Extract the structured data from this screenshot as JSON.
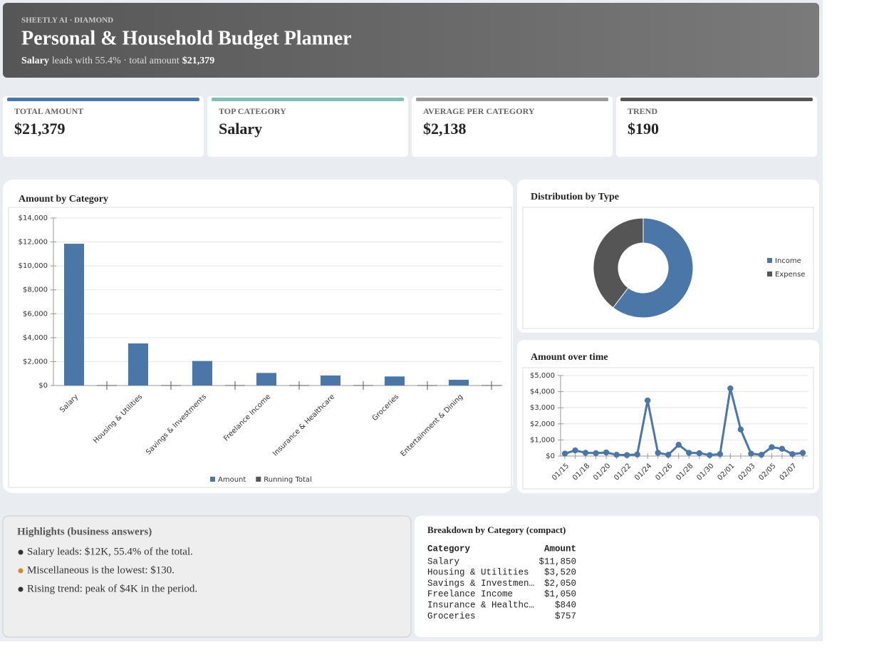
{
  "header": {
    "eyebrow": "SHEETLY AI · DIAMOND",
    "title": "Personal & Household Budget Planner",
    "subtitle": {
      "lead": "Salary",
      "text": "leads with 55.4% · total amount",
      "total": "$21,379"
    }
  },
  "kpis": [
    {
      "label": "TOTAL AMOUNT",
      "value": "$21,379",
      "color": "#4a76a8"
    },
    {
      "label": "TOP CATEGORY",
      "value": "Salary",
      "color": "#7fbfb5"
    },
    {
      "label": "AVERAGE PER CATEGORY",
      "value": "$2,138",
      "color": "#9a9a9a"
    },
    {
      "label": "TREND",
      "value": "$190",
      "color": "#555555"
    }
  ],
  "chart_data": [
    {
      "type": "bar",
      "title": "Amount by Category",
      "categories": [
        "Salary",
        "Housing & Utilities",
        "Savings & Investments",
        "Freelance Income",
        "Insurance & Healthcare",
        "Groceries",
        "Entertainment & Dining"
      ],
      "series": [
        {
          "name": "Amount",
          "color": "#4a76a8",
          "values": [
            11850,
            3520,
            2050,
            1050,
            840,
            757,
            480
          ]
        },
        {
          "name": "Running Total",
          "color": "#555555",
          "values": [
            0,
            0,
            0,
            0,
            0,
            0,
            0
          ]
        }
      ],
      "ylim": [
        0,
        14000
      ],
      "yticks": [
        {
          "value": 0,
          "label": "$0"
        },
        {
          "value": 2000,
          "label": "$2,000"
        },
        {
          "value": 4000,
          "label": "$4,000"
        },
        {
          "value": 6000,
          "label": "$6,000"
        },
        {
          "value": 8000,
          "label": "$8,000"
        },
        {
          "value": 10000,
          "label": "$10,000"
        },
        {
          "value": 12000,
          "label": "$12,000"
        },
        {
          "value": 14000,
          "label": "$14,000"
        }
      ],
      "grid": true,
      "legend": "bottom"
    },
    {
      "type": "pie",
      "title": "Distribution by Type",
      "categories": [
        "Income",
        "Expense"
      ],
      "values": [
        12900,
        8479
      ],
      "colors": [
        "#4a76a8",
        "#555555"
      ],
      "legend": "right"
    },
    {
      "type": "line",
      "title": "Amount over time",
      "categories": [
        "01/15",
        null,
        "01/18",
        null,
        "01/20",
        null,
        "01/22",
        null,
        "01/24",
        null,
        "01/26",
        null,
        "01/28",
        null,
        "01/30",
        null,
        "02/01",
        null,
        "02/03",
        null,
        "02/05",
        null,
        "02/07",
        null
      ],
      "values": [
        150,
        350,
        200,
        180,
        220,
        80,
        60,
        100,
        3450,
        200,
        80,
        700,
        200,
        180,
        60,
        120,
        4200,
        1650,
        150,
        80,
        550,
        450,
        120,
        200
      ],
      "color": "#4a76a8",
      "ylim": [
        0,
        5000
      ],
      "yticks": [
        {
          "value": 0,
          "label": "$0"
        },
        {
          "value": 1000,
          "label": "$1,000"
        },
        {
          "value": 2000,
          "label": "$2,000"
        },
        {
          "value": 3000,
          "label": "$3,000"
        },
        {
          "value": 4000,
          "label": "$4,000"
        },
        {
          "value": 5000,
          "label": "$5,000"
        }
      ],
      "grid": true
    }
  ],
  "highlights": {
    "title": "Highlights (business answers)",
    "items": [
      {
        "text": "Salary leads: $12K, 55.4% of the total.",
        "color": "#333333"
      },
      {
        "text": "Miscellaneous is the lowest: $130.",
        "color": "#d08a2a"
      },
      {
        "text": "Rising trend: peak of $4K in the period.",
        "color": "#333333"
      }
    ]
  },
  "table": {
    "title": "Breakdown by Category (compact)",
    "columns": [
      "Category",
      "Amount"
    ],
    "rows": [
      [
        "Salary",
        "$11,850"
      ],
      [
        "Housing & Utilities",
        "$3,520"
      ],
      [
        "Savings & Investmen…",
        "$2,050"
      ],
      [
        "Freelance Income",
        "$1,050"
      ],
      [
        "Insurance & Healthc…",
        "$840"
      ],
      [
        "Groceries",
        "$757"
      ]
    ]
  }
}
